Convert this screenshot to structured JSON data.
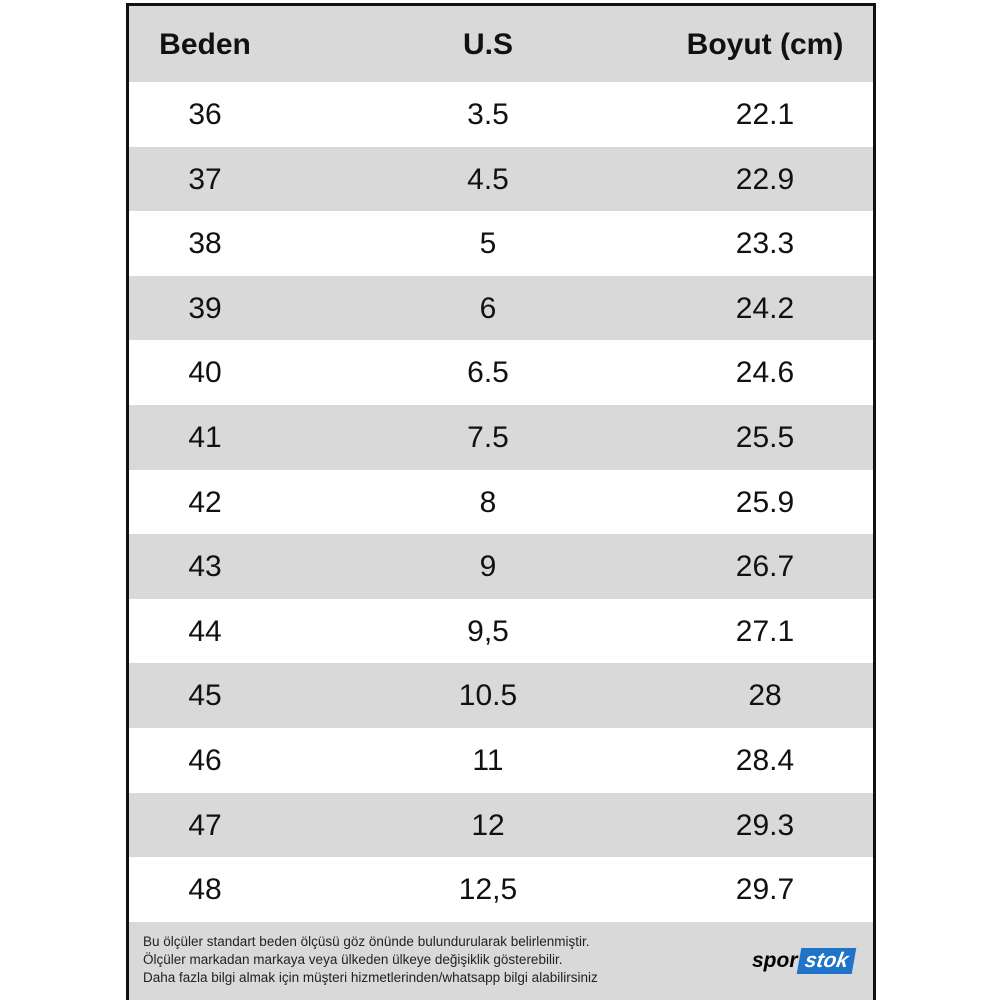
{
  "header": {
    "columns": [
      "Beden",
      "U.S",
      "Boyut (cm)"
    ]
  },
  "table": {
    "rows": [
      [
        "36",
        "3.5",
        "22.1"
      ],
      [
        "37",
        "4.5",
        "22.9"
      ],
      [
        "38",
        "5",
        "23.3"
      ],
      [
        "39",
        "6",
        "24.2"
      ],
      [
        "40",
        "6.5",
        "24.6"
      ],
      [
        "41",
        "7.5",
        "25.5"
      ],
      [
        "42",
        "8",
        "25.9"
      ],
      [
        "43",
        "9",
        "26.7"
      ],
      [
        "44",
        "9,5",
        "27.1"
      ],
      [
        "45",
        "10.5",
        "28"
      ],
      [
        "46",
        "11",
        "28.4"
      ],
      [
        "47",
        "12",
        "29.3"
      ],
      [
        "48",
        "12,5",
        "29.7"
      ]
    ]
  },
  "footer": {
    "notes": [
      "Bu ölçüler standart beden ölçüsü göz önünde bulundurularak belirlenmiştir.",
      "Ölçüler markadan markaya veya ülkeden ülkeye değişiklik gösterebilir.",
      "Daha fazla bilgi almak için müşteri hizmetlerinden/whatsapp bilgi alabilirsiniz"
    ],
    "logo": {
      "part1": "spor",
      "part2": "stok"
    }
  }
}
